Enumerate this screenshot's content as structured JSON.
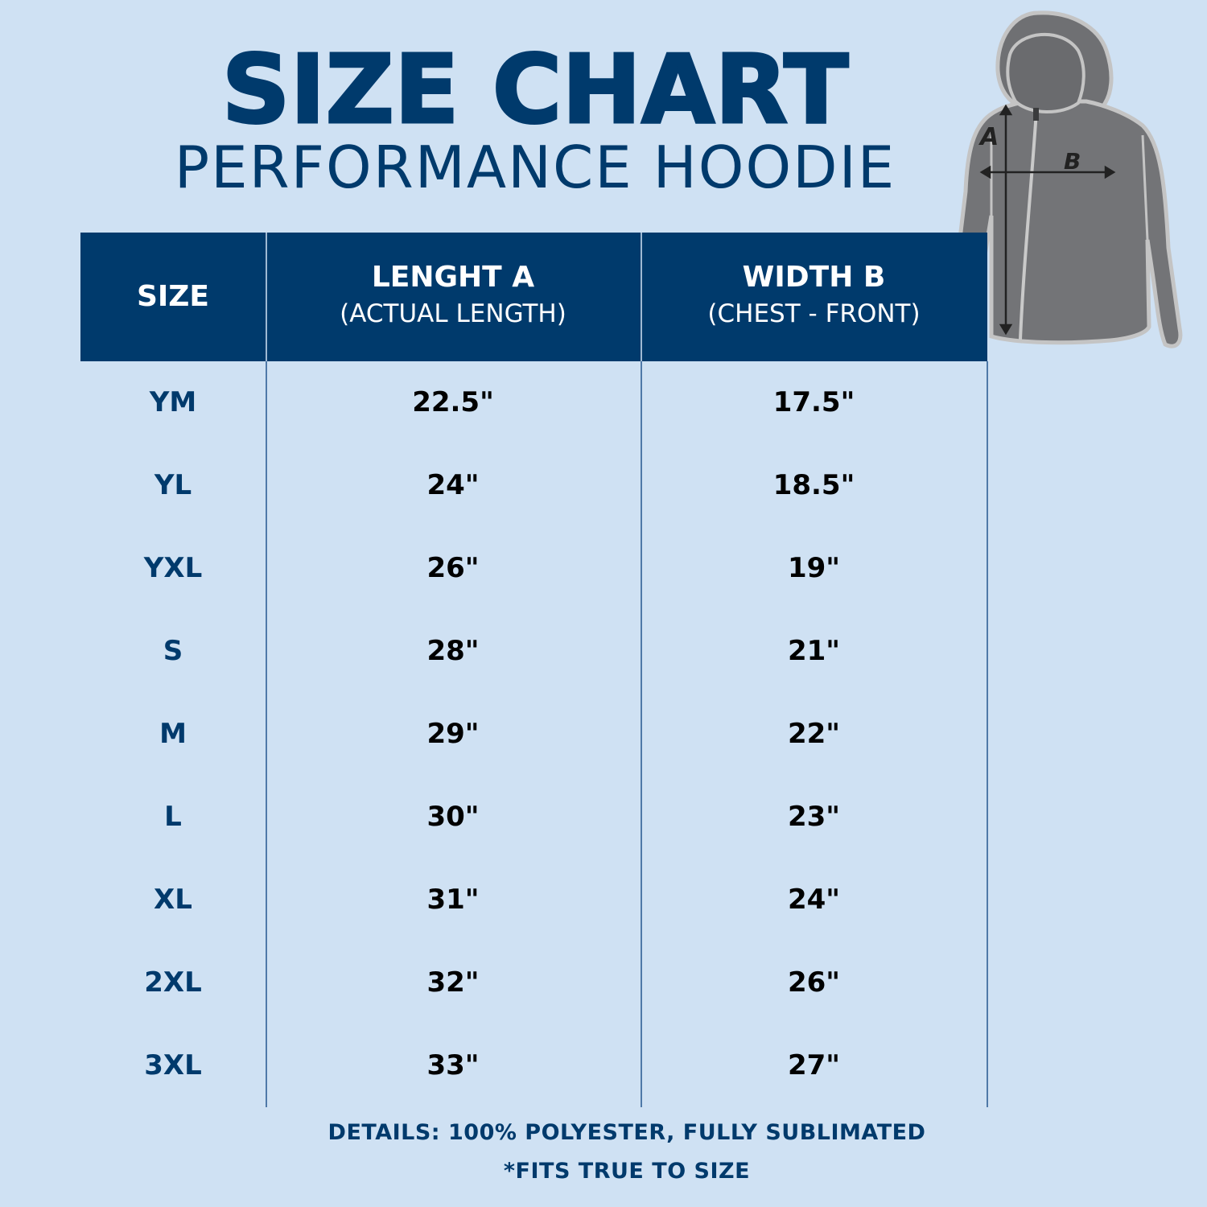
{
  "title": "SIZE CHART",
  "subtitle": "PERFORMANCE HOODIE",
  "table": {
    "headers": [
      {
        "main": "SIZE",
        "sub": ""
      },
      {
        "main": "LENGHT A",
        "sub": "(ACTUAL LENGTH)"
      },
      {
        "main": "WIDTH B",
        "sub": "(CHEST - FRONT)"
      }
    ],
    "rows": [
      {
        "size": "YM",
        "length": "22.5\"",
        "width": "17.5\""
      },
      {
        "size": "YL",
        "length": "24\"",
        "width": "18.5\""
      },
      {
        "size": "YXL",
        "length": "26\"",
        "width": "19\""
      },
      {
        "size": "S",
        "length": "28\"",
        "width": "21\""
      },
      {
        "size": "M",
        "length": "29\"",
        "width": "22\""
      },
      {
        "size": "L",
        "length": "30\"",
        "width": "23\""
      },
      {
        "size": "XL",
        "length": "31\"",
        "width": "24\""
      },
      {
        "size": "2XL",
        "length": "32\"",
        "width": "26\""
      },
      {
        "size": "3XL",
        "length": "33\"",
        "width": "27\""
      }
    ]
  },
  "illustration": {
    "icon": "hoodie-icon",
    "label_a": "A",
    "label_b": "B"
  },
  "footer": {
    "details": "DETAILS: 100% POLYESTER, FULLY SUBLIMATED",
    "fit": "*FITS TRUE TO SIZE"
  },
  "colors": {
    "background": "#cfe1f3",
    "navy": "#003a6c",
    "hoodie_gray": "#737477"
  }
}
